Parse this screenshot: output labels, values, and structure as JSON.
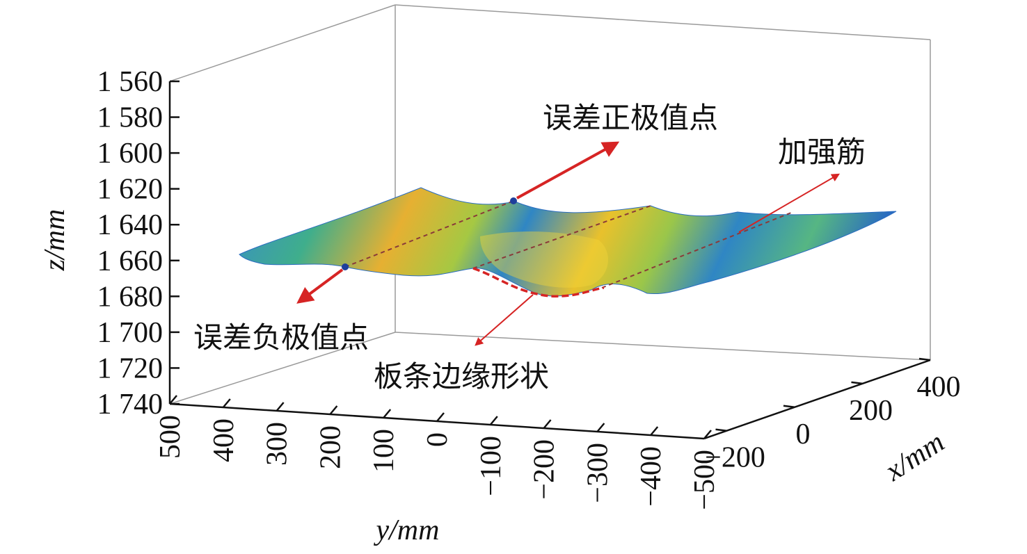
{
  "chart_data": {
    "type": "surface3d",
    "zlabel": "z/mm",
    "ylabel": "y/mm",
    "xlabel": "x/mm",
    "z_ticks": [
      "1 560",
      "1 580",
      "1 600",
      "1 620",
      "1 640",
      "1 660",
      "1 680",
      "1 700",
      "1 720",
      "1 740"
    ],
    "z_range": [
      1560,
      1740
    ],
    "z_axis_reversed": true,
    "y_ticks": [
      "500",
      "400",
      "300",
      "200",
      "100",
      "0",
      "−100",
      "−200",
      "−300",
      "−400",
      "−500"
    ],
    "y_range": [
      -500,
      500
    ],
    "x_ticks": [
      "−200",
      "0",
      "200",
      "400"
    ],
    "x_range": [
      -200,
      400
    ],
    "annotations": [
      {
        "label": "误差正极值点"
      },
      {
        "label": "加强筋"
      },
      {
        "label": "误差负极值点"
      },
      {
        "label": "板条边缘形状"
      }
    ],
    "colors": {
      "surface_low": "#2b78c2",
      "surface_mid": "#3fae8c",
      "surface_high": "#e8c02a",
      "annotation_arrow": "#d62424",
      "box": "#9a9a9a"
    }
  }
}
